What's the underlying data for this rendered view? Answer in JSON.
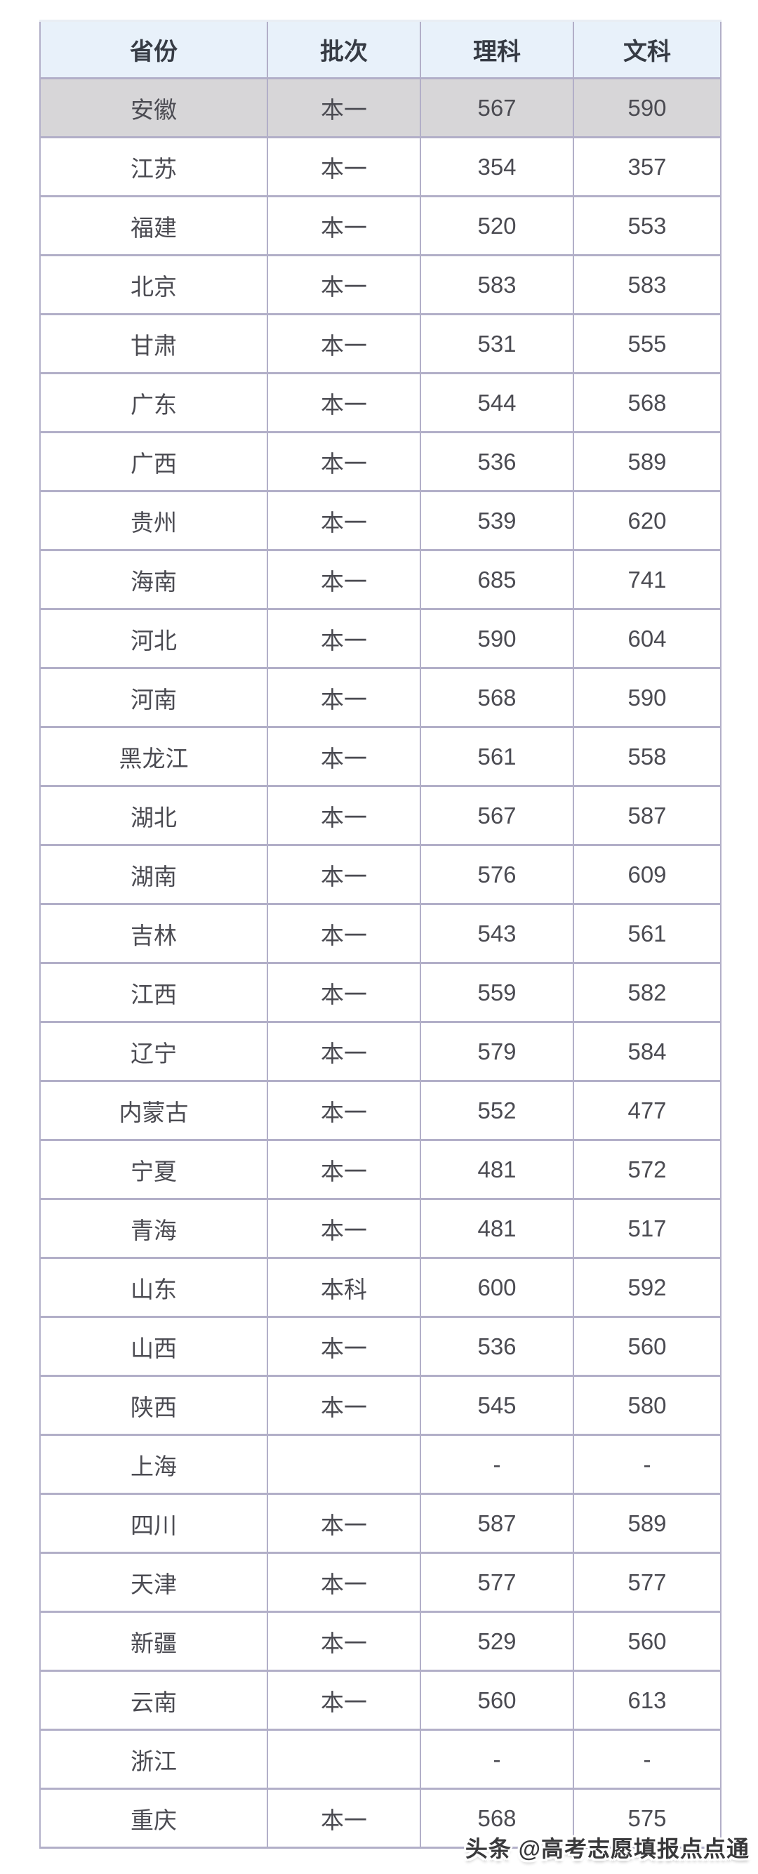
{
  "table": {
    "columns": [
      {
        "key": "province",
        "label": "省份"
      },
      {
        "key": "batch",
        "label": "批次"
      },
      {
        "key": "science",
        "label": "理科"
      },
      {
        "key": "arts",
        "label": "文科"
      }
    ],
    "highlighted_province": "安徽",
    "rows": [
      {
        "province": "安徽",
        "batch": "本一",
        "science": "567",
        "arts": "590"
      },
      {
        "province": "江苏",
        "batch": "本一",
        "science": "354",
        "arts": "357"
      },
      {
        "province": "福建",
        "batch": "本一",
        "science": "520",
        "arts": "553"
      },
      {
        "province": "北京",
        "batch": "本一",
        "science": "583",
        "arts": "583"
      },
      {
        "province": "甘肃",
        "batch": "本一",
        "science": "531",
        "arts": "555"
      },
      {
        "province": "广东",
        "batch": "本一",
        "science": "544",
        "arts": "568"
      },
      {
        "province": "广西",
        "batch": "本一",
        "science": "536",
        "arts": "589"
      },
      {
        "province": "贵州",
        "batch": "本一",
        "science": "539",
        "arts": "620"
      },
      {
        "province": "海南",
        "batch": "本一",
        "science": "685",
        "arts": "741"
      },
      {
        "province": "河北",
        "batch": "本一",
        "science": "590",
        "arts": "604"
      },
      {
        "province": "河南",
        "batch": "本一",
        "science": "568",
        "arts": "590"
      },
      {
        "province": "黑龙江",
        "batch": "本一",
        "science": "561",
        "arts": "558"
      },
      {
        "province": "湖北",
        "batch": "本一",
        "science": "567",
        "arts": "587"
      },
      {
        "province": "湖南",
        "batch": "本一",
        "science": "576",
        "arts": "609"
      },
      {
        "province": "吉林",
        "batch": "本一",
        "science": "543",
        "arts": "561"
      },
      {
        "province": "江西",
        "batch": "本一",
        "science": "559",
        "arts": "582"
      },
      {
        "province": "辽宁",
        "batch": "本一",
        "science": "579",
        "arts": "584"
      },
      {
        "province": "内蒙古",
        "batch": "本一",
        "science": "552",
        "arts": "477"
      },
      {
        "province": "宁夏",
        "batch": "本一",
        "science": "481",
        "arts": "572"
      },
      {
        "province": "青海",
        "batch": "本一",
        "science": "481",
        "arts": "517"
      },
      {
        "province": "山东",
        "batch": "本科",
        "science": "600",
        "arts": "592"
      },
      {
        "province": "山西",
        "batch": "本一",
        "science": "536",
        "arts": "560"
      },
      {
        "province": "陕西",
        "batch": "本一",
        "science": "545",
        "arts": "580"
      },
      {
        "province": "上海",
        "batch": "",
        "science": "-",
        "arts": "-"
      },
      {
        "province": "四川",
        "batch": "本一",
        "science": "587",
        "arts": "589"
      },
      {
        "province": "天津",
        "batch": "本一",
        "science": "577",
        "arts": "577"
      },
      {
        "province": "新疆",
        "batch": "本一",
        "science": "529",
        "arts": "560"
      },
      {
        "province": "云南",
        "batch": "本一",
        "science": "560",
        "arts": "613"
      },
      {
        "province": "浙江",
        "batch": "",
        "science": "-",
        "arts": "-"
      },
      {
        "province": "重庆",
        "batch": "本一",
        "science": "568",
        "arts": "575"
      }
    ]
  },
  "watermark": {
    "text": "头条 @高考志愿填报点点通"
  },
  "colors": {
    "header_bg": "#e8f1fa",
    "highlight_bg": "#d7d6d8",
    "row_bg": "#ffffff",
    "border_color": "#b2afc8",
    "header_text": "#363b44",
    "cell_text": "#4b4b52",
    "watermark_text": "#39393b",
    "page_bg": "#ffffff"
  }
}
